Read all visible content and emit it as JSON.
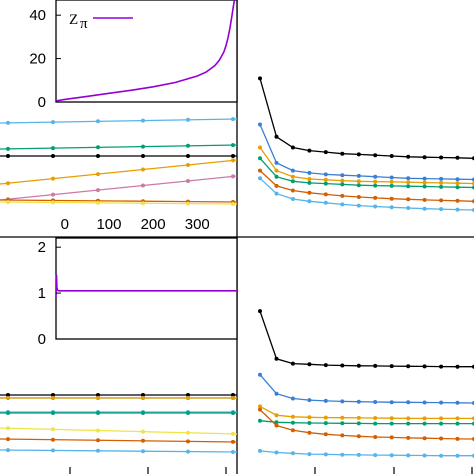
{
  "chart_data": [
    {
      "type": "line",
      "role": "top-left main panel (cropped)",
      "series": [
        {
          "color": "#56b4e9",
          "x": [
            0,
            50,
            100,
            150,
            200,
            250,
            300,
            350,
            400
          ],
          "y": [
            123,
            122.5,
            122,
            121.5,
            121,
            120.5,
            120,
            119.5,
            119
          ]
        },
        {
          "color": "#009e73",
          "x": [
            0,
            50,
            100,
            150,
            200,
            250,
            300,
            350,
            400
          ],
          "y": [
            149,
            148.5,
            148,
            147.5,
            147,
            146.5,
            146,
            145.5,
            145
          ]
        },
        {
          "color": "#000000",
          "x": [
            0,
            50,
            100,
            150,
            200,
            250,
            300,
            350,
            400
          ],
          "y": [
            156,
            156,
            156,
            156,
            156,
            156,
            156,
            156,
            156
          ]
        },
        {
          "color": "#e69f00",
          "x": [
            0,
            50,
            100,
            150,
            200,
            250,
            300,
            350,
            400
          ],
          "y": [
            184,
            181,
            178,
            175,
            172,
            169,
            166,
            163,
            160
          ]
        },
        {
          "color": "#cc79a7",
          "x": [
            0,
            100,
            200,
            300,
            400
          ],
          "y": [
            200,
            194,
            188,
            182,
            176
          ]
        },
        {
          "color": "#d55e00",
          "x": [
            0,
            100,
            200,
            300,
            400
          ],
          "y": [
            200,
            200.5,
            201,
            201.5,
            202
          ]
        },
        {
          "color": "#f0e442",
          "x": [
            0,
            100,
            200,
            300,
            400
          ],
          "y": [
            202,
            202.5,
            203,
            203.5,
            204
          ]
        }
      ]
    },
    {
      "type": "line",
      "role": "top-left inset",
      "x_ticks": [
        "0",
        "100",
        "200",
        "300"
      ],
      "y_ticks": [
        "0",
        "20",
        "40"
      ],
      "xlim": [
        -20,
        390
      ],
      "ylim": [
        0,
        47
      ],
      "legend": {
        "label": "Z",
        "subscript": "π",
        "placement": "top-left"
      },
      "series": [
        {
          "name": "Zπ",
          "color": "#9400d3",
          "x": [
            -20,
            0,
            50,
            100,
            150,
            200,
            250,
            300,
            320,
            340,
            350,
            360,
            365,
            370,
            374,
            378,
            381,
            384
          ],
          "y": [
            0.5,
            1.2,
            2.6,
            4.0,
            5.4,
            7.0,
            9.0,
            12.0,
            13.8,
            16.8,
            19.2,
            23.0,
            26.0,
            30.0,
            34.0,
            39.0,
            43.0,
            47.0
          ]
        }
      ]
    },
    {
      "type": "line",
      "role": "top-right panel",
      "series": [
        {
          "color": "#000000",
          "x": [
            0,
            1,
            2,
            3,
            4,
            5,
            6,
            7,
            8,
            9,
            10,
            11,
            12,
            13
          ],
          "y": [
            1.0,
            0.62,
            0.55,
            0.53,
            0.52,
            0.51,
            0.505,
            0.5,
            0.495,
            0.49,
            0.487,
            0.485,
            0.483,
            0.48
          ]
        },
        {
          "color": "#3a7fd5",
          "x": [
            0,
            1,
            2,
            3,
            4,
            5,
            6,
            7,
            8,
            9,
            10,
            11,
            12,
            13
          ],
          "y": [
            0.7,
            0.45,
            0.4,
            0.385,
            0.375,
            0.37,
            0.365,
            0.36,
            0.355,
            0.35,
            0.348,
            0.346,
            0.344,
            0.342
          ]
        },
        {
          "color": "#e69f00",
          "x": [
            0,
            1,
            2,
            3,
            4,
            5,
            6,
            7,
            8,
            9,
            10,
            11,
            12,
            13
          ],
          "y": [
            0.55,
            0.4,
            0.36,
            0.345,
            0.34,
            0.335,
            0.33,
            0.328,
            0.326,
            0.324,
            0.322,
            0.32,
            0.318,
            0.316
          ]
        },
        {
          "color": "#009e73",
          "x": [
            0,
            1,
            2,
            3,
            4,
            5,
            6,
            7,
            8,
            9,
            10,
            11,
            12,
            13
          ],
          "y": [
            0.48,
            0.36,
            0.33,
            0.32,
            0.315,
            0.31,
            0.305,
            0.302,
            0.3,
            0.298,
            0.296,
            0.294,
            0.292,
            0.29
          ]
        },
        {
          "color": "#d55e00",
          "x": [
            0,
            1,
            2,
            3,
            4,
            5,
            6,
            7,
            8,
            9,
            10,
            11,
            12,
            13
          ],
          "y": [
            0.4,
            0.3,
            0.27,
            0.255,
            0.245,
            0.235,
            0.228,
            0.222,
            0.217,
            0.213,
            0.209,
            0.206,
            0.203,
            0.2
          ]
        },
        {
          "color": "#56b4e9",
          "x": [
            0,
            1,
            2,
            3,
            4,
            5,
            6,
            7,
            8,
            9,
            10,
            11,
            12,
            13
          ],
          "y": [
            0.35,
            0.25,
            0.215,
            0.2,
            0.19,
            0.18,
            0.172,
            0.166,
            0.161,
            0.156,
            0.152,
            0.149,
            0.146,
            0.143
          ]
        }
      ]
    },
    {
      "type": "line",
      "role": "bottom-left main panel (cropped)",
      "series": [
        {
          "color": "#000000",
          "x": [
            0,
            400
          ],
          "y": [
            395,
            395
          ]
        },
        {
          "color": "#3a7fd5",
          "x": [
            0,
            400
          ],
          "y": [
            398,
            398
          ]
        },
        {
          "color": "#e69f00",
          "x": [
            0,
            400
          ],
          "y": [
            398,
            398
          ]
        },
        {
          "color": "#56b4e9",
          "x": [
            0,
            400
          ],
          "y": [
            412,
            412
          ]
        },
        {
          "color": "#009e73",
          "x": [
            0,
            400
          ],
          "y": [
            413,
            413
          ]
        },
        {
          "color": "#f0e442",
          "x": [
            0,
            400
          ],
          "y": [
            428,
            434
          ]
        },
        {
          "color": "#d55e00",
          "x": [
            0,
            400
          ],
          "y": [
            439,
            442
          ]
        },
        {
          "color": "#56b4e9",
          "x": [
            0,
            400
          ],
          "y": [
            450,
            452
          ]
        }
      ]
    },
    {
      "type": "line",
      "role": "bottom-left inset",
      "y_ticks": [
        "0",
        "1",
        "2"
      ],
      "ylim": [
        0,
        2.2
      ],
      "series": [
        {
          "color": "#9400d3",
          "x": [
            0,
            0.5,
            1,
            1.5,
            2,
            3,
            4,
            6,
            10,
            20,
            50,
            100,
            200,
            400
          ],
          "y": [
            0.9,
            1.35,
            1.4,
            1.25,
            1.12,
            1.08,
            1.06,
            1.05,
            1.05,
            1.05,
            1.05,
            1.05,
            1.05,
            1.05
          ]
        }
      ]
    },
    {
      "type": "line",
      "role": "bottom-right panel",
      "series": [
        {
          "color": "#000000",
          "x": [
            0,
            1,
            2,
            3,
            4,
            5,
            6,
            7,
            8,
            9,
            10,
            11,
            12,
            13
          ],
          "y": [
            1.0,
            0.7,
            0.67,
            0.665,
            0.66,
            0.658,
            0.656,
            0.655,
            0.654,
            0.653,
            0.652,
            0.651,
            0.65,
            0.65
          ]
        },
        {
          "color": "#3a7fd5",
          "x": [
            0,
            1,
            2,
            3,
            4,
            5,
            6,
            7,
            8,
            9,
            10,
            11,
            12,
            13
          ],
          "y": [
            0.6,
            0.48,
            0.45,
            0.44,
            0.435,
            0.432,
            0.43,
            0.428,
            0.427,
            0.426,
            0.425,
            0.424,
            0.423,
            0.422
          ]
        },
        {
          "color": "#e69f00",
          "x": [
            0,
            1,
            2,
            3,
            4,
            5,
            6,
            7,
            8,
            9,
            10,
            11,
            12,
            13
          ],
          "y": [
            0.4,
            0.345,
            0.335,
            0.332,
            0.33,
            0.329,
            0.328,
            0.327,
            0.326,
            0.325,
            0.325,
            0.325,
            0.325,
            0.325
          ]
        },
        {
          "color": "#009e73",
          "x": [
            0,
            1,
            2,
            3,
            4,
            5,
            6,
            7,
            8,
            9,
            10,
            11,
            12,
            13
          ],
          "y": [
            0.31,
            0.3,
            0.298,
            0.296,
            0.295,
            0.294,
            0.293,
            0.292,
            0.292,
            0.292,
            0.292,
            0.292,
            0.292,
            0.292
          ]
        },
        {
          "color": "#d55e00",
          "x": [
            0,
            1,
            2,
            3,
            4,
            5,
            6,
            7,
            8,
            9,
            10,
            11,
            12,
            13
          ],
          "y": [
            0.38,
            0.28,
            0.25,
            0.235,
            0.225,
            0.218,
            0.212,
            0.208,
            0.205,
            0.202,
            0.2,
            0.198,
            0.196,
            0.195
          ]
        },
        {
          "color": "#56b4e9",
          "x": [
            0,
            1,
            2,
            3,
            4,
            5,
            6,
            7,
            8,
            9,
            10,
            11,
            12,
            13
          ],
          "y": [
            0.12,
            0.11,
            0.105,
            0.1,
            0.098,
            0.096,
            0.095,
            0.094,
            0.093,
            0.092,
            0.091,
            0.09,
            0.09,
            0.09
          ]
        }
      ]
    }
  ]
}
